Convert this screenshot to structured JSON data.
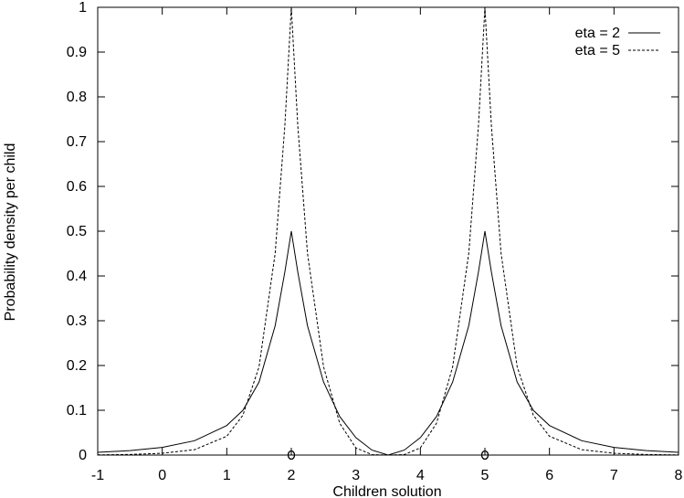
{
  "chart_data": {
    "type": "line",
    "title": "",
    "xlabel": "Children solution",
    "ylabel": "Probability density per child",
    "xlim": [
      -1,
      8
    ],
    "ylim": [
      0,
      1
    ],
    "x_ticks": [
      "-1",
      "0",
      "1",
      "2",
      "3",
      "4",
      "5",
      "6",
      "7",
      "8"
    ],
    "y_ticks": [
      "0",
      "0.1",
      "0.2",
      "0.3",
      "0.4",
      "0.5",
      "0.6",
      "0.7",
      "0.8",
      "0.9",
      "1"
    ],
    "grid": false,
    "legend_position": "top-right",
    "parent_markers": {
      "x": [
        2,
        5
      ],
      "y": [
        0,
        0
      ],
      "symbol": "o"
    },
    "series": [
      {
        "name": "eta = 2",
        "style": "solid",
        "x": [
          -1,
          -0.5,
          0,
          0.5,
          1,
          1.25,
          1.5,
          1.75,
          1.9,
          2,
          2.1,
          2.25,
          2.5,
          2.75,
          3,
          3.25,
          3.5,
          3.75,
          4,
          4.25,
          4.5,
          4.75,
          4.9,
          5,
          5.1,
          5.25,
          5.5,
          5.75,
          6,
          6.5,
          7,
          7.5,
          8
        ],
        "y": [
          0.006,
          0.01,
          0.017,
          0.032,
          0.066,
          0.1,
          0.163,
          0.289,
          0.409,
          0.5,
          0.409,
          0.289,
          0.163,
          0.086,
          0.039,
          0.011,
          0,
          0.011,
          0.039,
          0.086,
          0.163,
          0.289,
          0.409,
          0.5,
          0.409,
          0.289,
          0.163,
          0.1,
          0.066,
          0.032,
          0.017,
          0.01,
          0.006
        ]
      },
      {
        "name": "eta = 5",
        "style": "dashed",
        "x": [
          -1,
          -0.5,
          0,
          0.5,
          1,
          1.25,
          1.5,
          1.75,
          1.9,
          2,
          2.1,
          2.25,
          2.5,
          2.75,
          3,
          3.25,
          3.5,
          3.75,
          4,
          4.25,
          4.5,
          4.75,
          4.9,
          5,
          5.1,
          5.25,
          5.5,
          5.75,
          6,
          6.5,
          7,
          7.5,
          8
        ],
        "y": [
          0.0004,
          0.0013,
          0.004,
          0.012,
          0.042,
          0.089,
          0.197,
          0.451,
          0.736,
          1.0,
          0.736,
          0.451,
          0.197,
          0.071,
          0.016,
          0.001,
          0,
          0.001,
          0.016,
          0.071,
          0.197,
          0.451,
          0.736,
          1.0,
          0.736,
          0.451,
          0.197,
          0.089,
          0.042,
          0.012,
          0.004,
          0.0013,
          0.0004
        ]
      }
    ]
  }
}
